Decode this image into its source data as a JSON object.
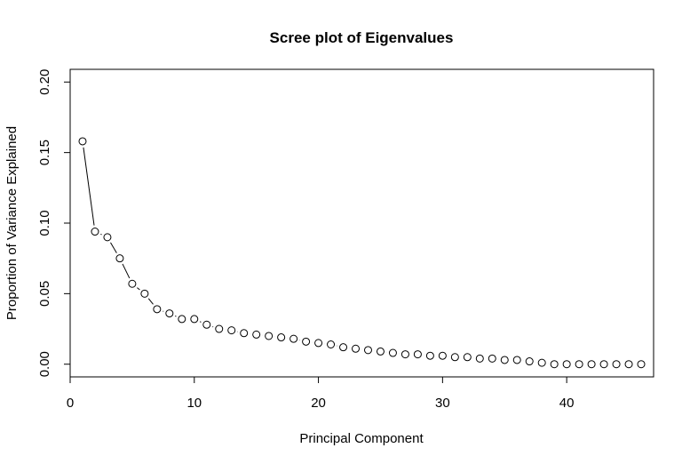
{
  "chart_data": {
    "type": "scatter",
    "title": "Scree plot of Eigenvalues",
    "xlabel": "Principal Component",
    "ylabel": "Proportion of Variance Explained",
    "xlim": [
      0,
      47
    ],
    "ylim": [
      -0.009,
      0.209
    ],
    "x_ticks": [
      0,
      10,
      20,
      30,
      40
    ],
    "x_tick_labels": [
      "0",
      "10",
      "20",
      "30",
      "40"
    ],
    "y_ticks": [
      0.0,
      0.05,
      0.1,
      0.15,
      0.2
    ],
    "y_tick_labels": [
      "0.00",
      "0.05",
      "0.10",
      "0.15",
      "0.20"
    ],
    "grid": false,
    "series": [
      {
        "style": "points-and-lines",
        "x": [
          1,
          2,
          3,
          4,
          5,
          6,
          7,
          8,
          9,
          10,
          11,
          12,
          13,
          14,
          15,
          16,
          17,
          18,
          19,
          20,
          21,
          22,
          23,
          24,
          25,
          26,
          27,
          28,
          29,
          30,
          31,
          32,
          33,
          34,
          35,
          36,
          37,
          38,
          39,
          40,
          41,
          42,
          43,
          44,
          45,
          46
        ],
        "y": [
          0.158,
          0.094,
          0.09,
          0.075,
          0.057,
          0.05,
          0.039,
          0.036,
          0.032,
          0.032,
          0.028,
          0.025,
          0.024,
          0.022,
          0.021,
          0.02,
          0.019,
          0.018,
          0.016,
          0.015,
          0.014,
          0.012,
          0.011,
          0.01,
          0.009,
          0.008,
          0.007,
          0.007,
          0.006,
          0.006,
          0.005,
          0.005,
          0.004,
          0.004,
          0.003,
          0.003,
          0.002,
          0.001,
          0.0,
          0.0,
          0.0,
          0.0,
          0.0,
          0.0,
          0.0,
          0.0
        ]
      }
    ]
  }
}
